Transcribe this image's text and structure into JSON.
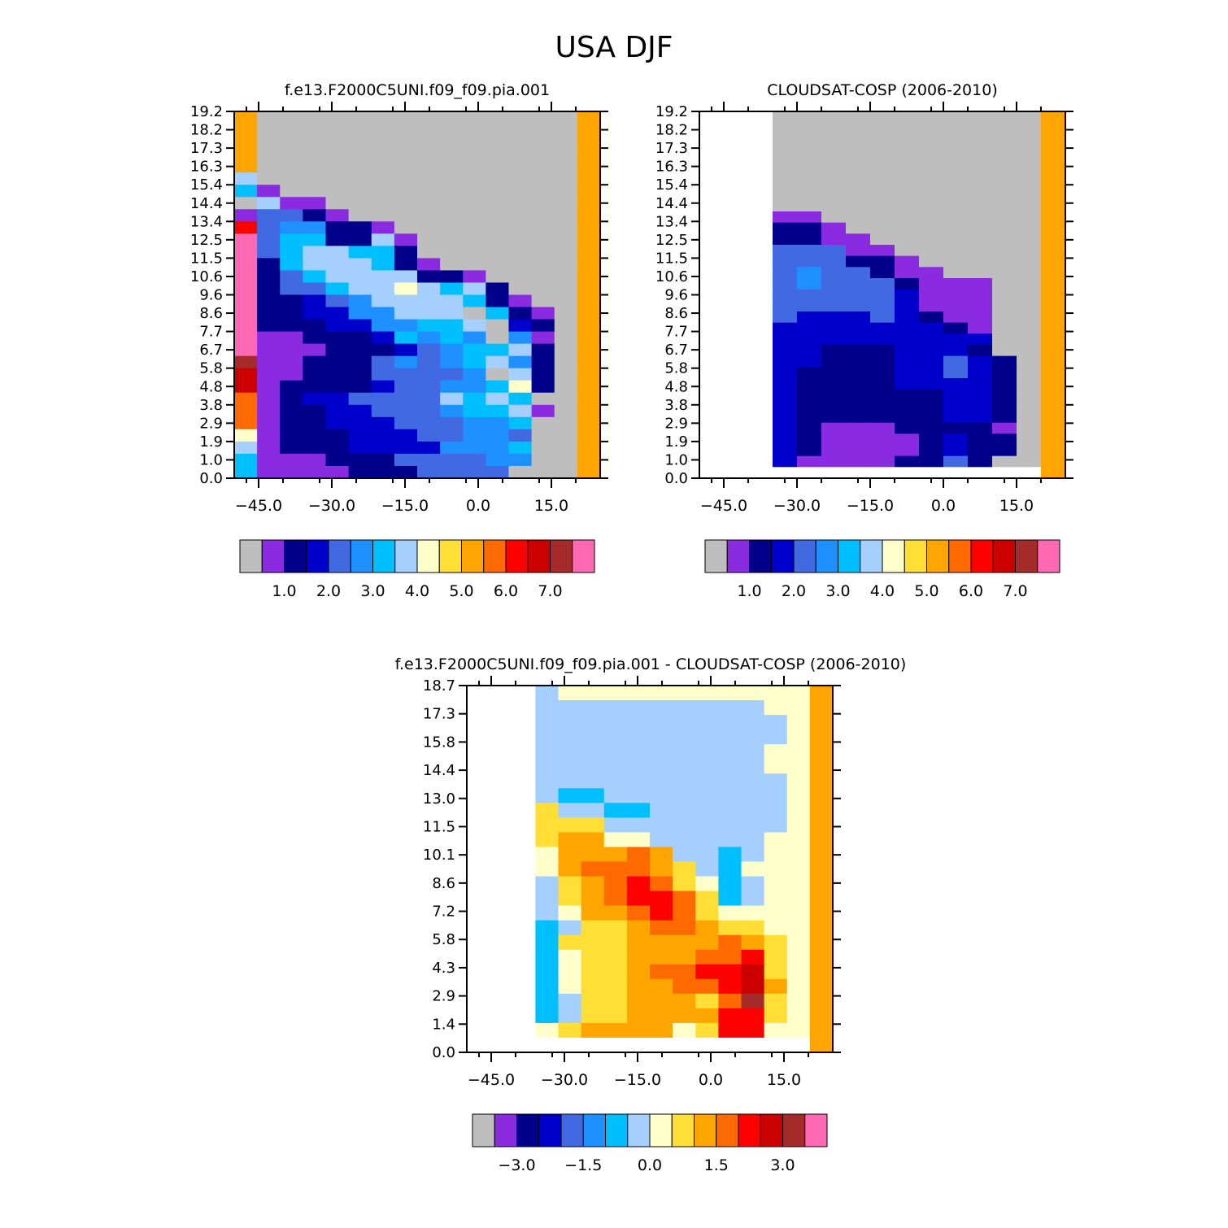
{
  "title": "USA DJF",
  "chart_data": [
    {
      "type": "heatmap",
      "title": "f.e13.F2000C5UNI.f09_f09.pia.001",
      "xlabel": "",
      "ylabel": "",
      "x_ticks": [
        "-45.0",
        "-30.0",
        "-15.0",
        "0.0",
        "15.0"
      ],
      "y_ticks": [
        "0.0",
        "1.0",
        "1.9",
        "2.9",
        "3.8",
        "4.8",
        "5.8",
        "6.7",
        "7.7",
        "8.6",
        "9.6",
        "10.6",
        "11.5",
        "12.5",
        "13.4",
        "14.4",
        "15.4",
        "16.3",
        "17.3",
        "18.2",
        "19.2"
      ],
      "colorbar_labels": [
        "1.0",
        "2.0",
        "3.0",
        "4.0",
        "5.0",
        "6.0",
        "7.0"
      ],
      "grid": [
        "KGGGGGGGGGGGGGGK",
        "KGGGGGGGGGGGGGGK",
        "KGGGGGGGGGGGGGGK",
        "KGGGGGGGGGGGGGGK",
        "KGGGGGGGGGGGGGGK",
        "HGGGGGGGGGGGGGGK",
        "FAGGGGGGGGGGGGGK",
        "GHAAGGGGGGGGGGGK",
        "ADDBAGGGGGGGGGGK",
        "MDEEBBAGGGGGGGGK",
        "PDFFBBHAGGGGGGGK",
        "PDFHHFFBGGGGGGGK",
        "PBFHHHFBAGGGGGGK",
        "PBDFHHHHBBAGGGGK",
        "PBDDFHHIHFHBGGGK",
        "PBBCDEHHHHFBAGGK",
        "PBBCCEEHHHGFBAGK",
        "PBBBCCEEFFHGCBGK",
        "PAABBBCFEFEGEAGK",
        "PAAABBBCDEFFHBGK",
        "OAABBBDEDEFHEBGK",
        "NAABBBDDDDEGHBGK",
        "NABBBBCDDEEFIBGK",
        "LABCCDDDDHFHFGGK",
        "LABBCCDDDEFFHAGK",
        "LABBCCCDDDEEFGGK",
        "IABBBCCCDDEEDGGK",
        "HABBBCCCCEEEFGGK",
        "FAAABBBDDDDEEGGK",
        "FAAAABBBDDDDGGGK"
      ]
    },
    {
      "type": "heatmap",
      "title": "CLOUDSAT-COSP (2006-2010)",
      "xlabel": "",
      "ylabel": "",
      "x_ticks": [
        "-45.0",
        "-30.0",
        "-15.0",
        "0.0",
        "15.0"
      ],
      "y_ticks": [
        "0.0",
        "1.0",
        "1.9",
        "2.9",
        "3.8",
        "4.8",
        "5.8",
        "6.7",
        "7.7",
        "8.6",
        "9.6",
        "10.6",
        "11.5",
        "12.5",
        "13.4",
        "14.4",
        "15.4",
        "16.3",
        "17.3",
        "18.2",
        "19.2"
      ],
      "colorbar_labels": [
        "1.0",
        "2.0",
        "3.0",
        "4.0",
        "5.0",
        "6.0",
        "7.0"
      ],
      "grid": [
        "WWWGGGGGGGGGGGK",
        "WWWGGGGGGGGGGGK",
        "WWWGGGGGGGGGGGK",
        "WWWGGGGGGGGGGGK",
        "WWWGGGGGGGGGGGK",
        "WWWGGGGGGGGGGGK",
        "WWWGGGGGGGGGGGK",
        "WWWGGGGGGGGGGGK",
        "WWWGGGGGGGGGGGK",
        "WWWAAGGGGGGGGGK",
        "WWWBBAGGGGGGGGK",
        "WWWBBAAGGGGGGGK",
        "WWWDDDAAGGGGGGK",
        "WWWDDDBBAGGGGGK",
        "WWWDEDDBAAGGGGK",
        "WWWDEDDDBAAAGGK",
        "WWWDDDDDCAAAGGK",
        "WWWDDDDDCAAAGGK",
        "WWWDCCCDCBAAGGK",
        "WWWCCCCCCCBAGGK",
        "WWWCCCCCCCCCGGK",
        "WWWCCBBBCCCBGGK",
        "WWWCCBBBCCDCBGK",
        "WWWCBBBBCCDCBGK",
        "WWWCBBBBCCCCBGK",
        "WWWCBBBBBBCCBGK",
        "WWWCBBBBBBCCBGK",
        "WWWCBBBBBBCCBGK",
        "WWWCBAAABBBBAGK",
        "WWWCBAAAABCBBGK",
        "WWWCBAAAABCBBGK",
        "WWWCAAAABBDBGGK",
        "WWWWWWWWWWWWWWK"
      ]
    },
    {
      "type": "heatmap",
      "title": "f.e13.F2000C5UNI.f09_f09.pia.001 - CLOUDSAT-COSP (2006-2010)",
      "xlabel": "",
      "ylabel": "",
      "x_ticks": [
        "-45.0",
        "-30.0",
        "-15.0",
        "0.0",
        "15.0"
      ],
      "y_ticks": [
        "0.0",
        "1.4",
        "2.9",
        "4.3",
        "5.8",
        "7.2",
        "8.6",
        "10.1",
        "11.5",
        "13.0",
        "14.4",
        "15.8",
        "17.3",
        "18.7"
      ],
      "colorbar_labels": [
        "-3.0",
        "-1.5",
        "0.0",
        "1.5",
        "3.0"
      ],
      "grid": [
        "WWWHIIIIIIIIIIIK",
        "WWWHHHHHHHHHHIIK",
        "WWWHHHHHHHHHHHIK",
        "WWWHHHHHHHHHHHIK",
        "WWWHHHHHHHHHHIIK",
        "WWWHHHHHHHHHHIIK",
        "WWWHHHHHHHHHHHIK",
        "WWWHFFHHHHHHHHIK",
        "WWWJHHFFHHHHHHIK",
        "WWWJJJHHHHHHHHIK",
        "WWWJKKIIHHHHHIIK",
        "WWWIKKKLKHHFHIIK",
        "WWWIKLLLKJHFIIIK",
        "WWWHJKLMLJIFHIIK",
        "WWWHJKLMMLJFHIIK",
        "WWWHIKKLMLJIIIIK",
        "WWWFHJJKLLKJJIIK",
        "WWWFJJJKKKKLKJIK",
        "WWWFIJJKKKLLMJIK",
        "WWWFIJJKLLMMNJIK",
        "WWWFIJJKKLLMNKIK",
        "WWWFHJJKKKJLOJIK",
        "WWWFHJJKKKKMMJIK",
        "WWWIJKKKKIJMMIIK",
        "WWWWWWWWWWWWWWWK"
      ]
    }
  ],
  "colorbar_colors": {
    "A": "#8a2be2",
    "B": "#00008b",
    "C": "#0000cd",
    "D": "#4169e1",
    "E": "#1e90ff",
    "F": "#00bfff",
    "G": "#bebebe",
    "H": "#a4cfff",
    "I": "#ffffcc",
    "J": "#ffde36",
    "K": "#ffa500",
    "L": "#ff6a00",
    "M": "#ff0000",
    "N": "#cd0000",
    "O": "#a52a2a",
    "P": "#ff69b4",
    "W": "#ffffff"
  }
}
